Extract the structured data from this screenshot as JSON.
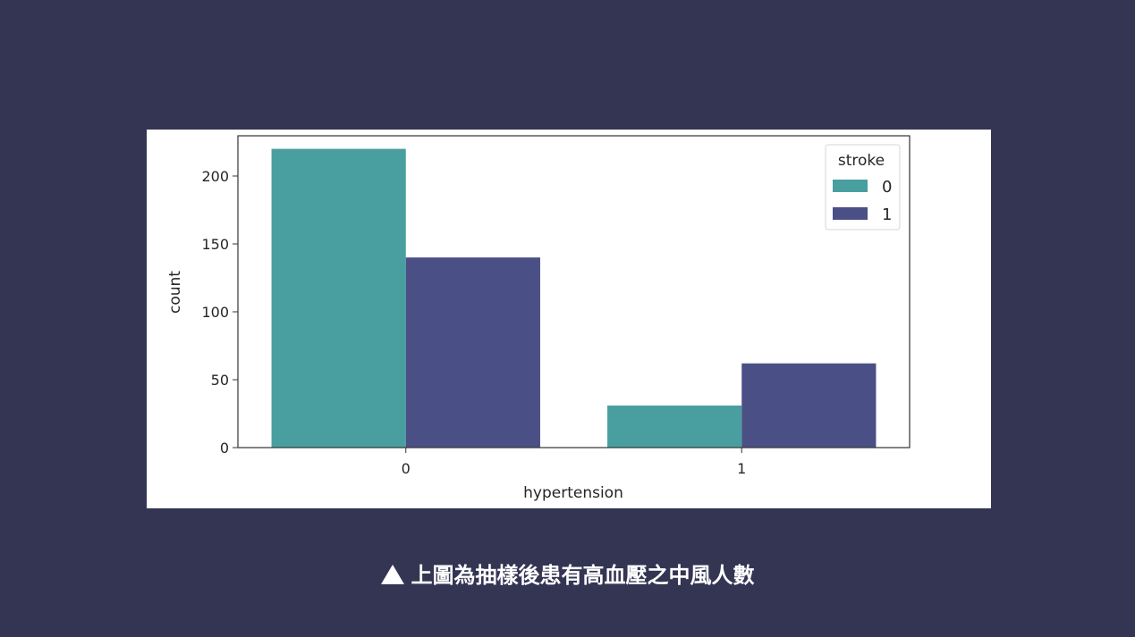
{
  "chart_data": {
    "type": "bar",
    "xlabel": "hypertension",
    "ylabel": "count",
    "categories": [
      "0",
      "1"
    ],
    "series": [
      {
        "name": "0",
        "values": [
          220,
          31
        ],
        "color": "#499f9f"
      },
      {
        "name": "1",
        "values": [
          140,
          62
        ],
        "color": "#4a5085"
      }
    ],
    "yticks": [
      0,
      50,
      100,
      150,
      200
    ],
    "ylim": [
      0,
      230
    ],
    "legend": {
      "title": "stroke",
      "position": "top-right"
    },
    "grid": false
  },
  "caption": {
    "text": "上圖為抽樣後患有高血壓之中風人數"
  }
}
